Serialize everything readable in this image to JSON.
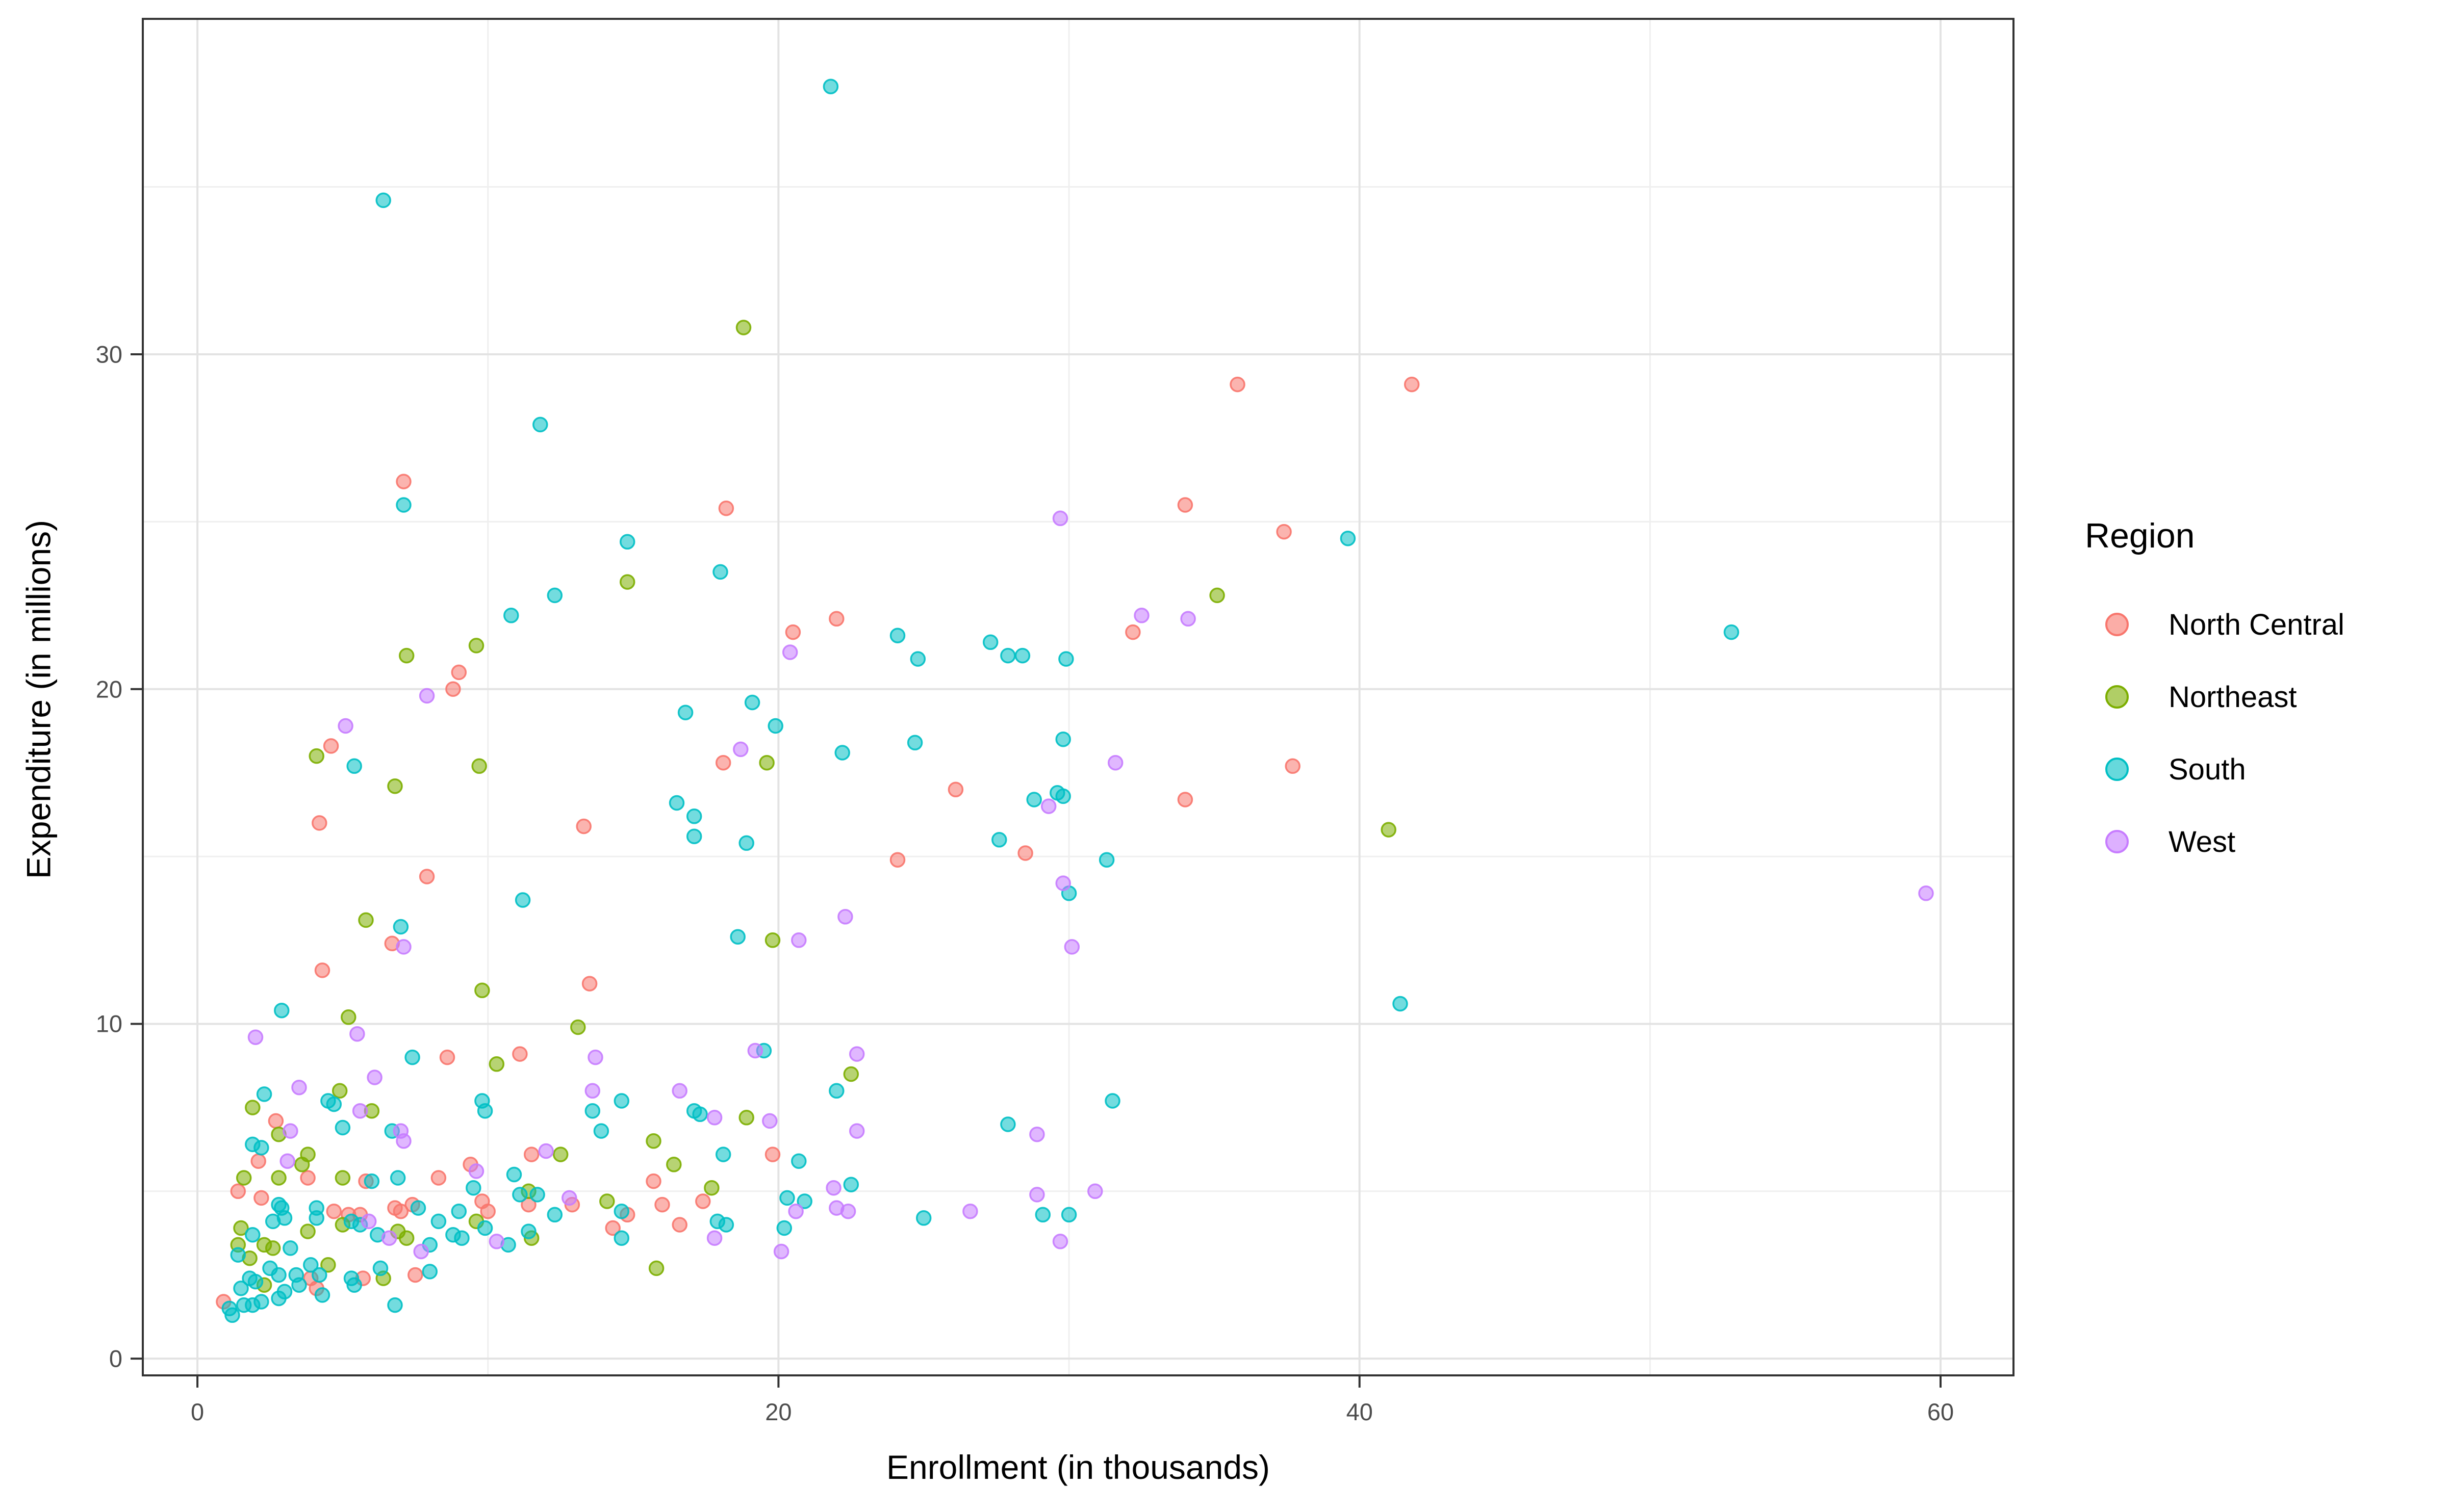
{
  "axes": {
    "x": {
      "label": "Enrollment (in thousands)",
      "ticks": [
        0,
        20,
        40,
        60
      ],
      "minor_ticks": [
        10,
        30,
        50
      ],
      "domain": [
        -1.88,
        62.51
      ]
    },
    "y": {
      "label": "Expenditure (in millions)",
      "ticks": [
        0,
        10,
        20,
        30
      ],
      "minor_ticks": [
        5,
        15,
        25,
        35
      ],
      "domain": [
        -0.5,
        40.02
      ]
    }
  },
  "legend": {
    "title": "Region",
    "items": [
      {
        "label": "North Central",
        "color": "#F8766D"
      },
      {
        "label": "Northeast",
        "color": "#7CAE00"
      },
      {
        "label": "South",
        "color": "#00BFC4"
      },
      {
        "label": "West",
        "color": "#C77CFF"
      }
    ]
  },
  "style": {
    "grid_major_color": "#e3e3e3",
    "grid_minor_color": "#efefef",
    "panel_border_color": "#333333",
    "tick_mark_color": "#333333",
    "point_fill_opacity": 0.55,
    "point_stroke_opacity": 0.9
  },
  "chart_data": {
    "type": "scatter",
    "title": "",
    "xlabel": "Enrollment (in thousands)",
    "ylabel": "Expenditure (in millions)",
    "xlim": [
      -1.88,
      62.51
    ],
    "ylim": [
      -0.5,
      40.02
    ],
    "grid": true,
    "legend_position": "right",
    "series": [
      {
        "name": "North Central",
        "color": "#F8766D",
        "points": [
          [
            3.8,
            5.4
          ],
          [
            5.8,
            5.3
          ],
          [
            8.3,
            5.4
          ],
          [
            1.4,
            5.0
          ],
          [
            2.2,
            4.8
          ],
          [
            4.7,
            4.4
          ],
          [
            5.2,
            4.3
          ],
          [
            5.6,
            4.3
          ],
          [
            6.8,
            4.5
          ],
          [
            7.0,
            4.4
          ],
          [
            7.4,
            4.6
          ],
          [
            9.8,
            4.7
          ],
          [
            10.0,
            4.4
          ],
          [
            11.4,
            4.6
          ],
          [
            3.9,
            2.4
          ],
          [
            4.1,
            2.1
          ],
          [
            5.7,
            2.4
          ],
          [
            7.5,
            2.5
          ],
          [
            0.9,
            1.7
          ],
          [
            12.9,
            4.6
          ],
          [
            14.8,
            4.3
          ],
          [
            14.3,
            3.9
          ],
          [
            15.7,
            5.3
          ],
          [
            16.0,
            4.6
          ],
          [
            16.6,
            4.0
          ],
          [
            17.4,
            4.7
          ],
          [
            4.3,
            11.6
          ],
          [
            8.6,
            9.0
          ],
          [
            11.1,
            9.1
          ],
          [
            2.7,
            7.1
          ],
          [
            2.1,
            5.9
          ],
          [
            9.4,
            5.8
          ],
          [
            11.5,
            6.1
          ],
          [
            13.5,
            11.2
          ],
          [
            19.8,
            6.1
          ],
          [
            22.0,
            22.1
          ],
          [
            20.5,
            21.7
          ],
          [
            18.1,
            17.8
          ],
          [
            26.1,
            17.0
          ],
          [
            28.5,
            15.1
          ],
          [
            24.1,
            14.9
          ],
          [
            9.0,
            20.5
          ],
          [
            8.8,
            20.0
          ],
          [
            4.6,
            18.3
          ],
          [
            4.2,
            16.0
          ],
          [
            13.3,
            15.9
          ],
          [
            7.9,
            14.4
          ],
          [
            6.7,
            12.4
          ],
          [
            32.2,
            21.7
          ],
          [
            37.7,
            17.7
          ],
          [
            34.0,
            16.7
          ],
          [
            7.1,
            26.2
          ],
          [
            18.2,
            25.4
          ],
          [
            35.8,
            29.1
          ],
          [
            41.8,
            29.1
          ],
          [
            34.0,
            25.5
          ],
          [
            37.4,
            24.7
          ]
        ]
      },
      {
        "name": "Northeast",
        "color": "#7CAE00",
        "points": [
          [
            1.6,
            5.4
          ],
          [
            2.8,
            5.4
          ],
          [
            5.0,
            5.4
          ],
          [
            1.5,
            3.9
          ],
          [
            1.4,
            3.4
          ],
          [
            2.3,
            3.4
          ],
          [
            1.8,
            3.0
          ],
          [
            2.6,
            3.3
          ],
          [
            3.8,
            3.8
          ],
          [
            5.0,
            4.0
          ],
          [
            6.9,
            3.8
          ],
          [
            7.2,
            3.6
          ],
          [
            9.6,
            4.1
          ],
          [
            11.5,
            3.6
          ],
          [
            2.3,
            2.2
          ],
          [
            4.5,
            2.8
          ],
          [
            6.4,
            2.4
          ],
          [
            11.4,
            5.0
          ],
          [
            14.1,
            4.7
          ],
          [
            15.8,
            2.7
          ],
          [
            17.7,
            5.1
          ],
          [
            9.8,
            11.0
          ],
          [
            5.2,
            10.2
          ],
          [
            10.3,
            8.8
          ],
          [
            1.9,
            7.5
          ],
          [
            4.9,
            8.0
          ],
          [
            6.0,
            7.4
          ],
          [
            2.8,
            6.7
          ],
          [
            3.8,
            6.1
          ],
          [
            3.6,
            5.8
          ],
          [
            13.1,
            9.9
          ],
          [
            18.9,
            7.2
          ],
          [
            22.5,
            8.5
          ],
          [
            15.7,
            6.5
          ],
          [
            16.4,
            5.8
          ],
          [
            12.5,
            6.1
          ],
          [
            7.2,
            21.0
          ],
          [
            9.6,
            21.3
          ],
          [
            4.1,
            18.0
          ],
          [
            6.8,
            17.1
          ],
          [
            9.7,
            17.7
          ],
          [
            5.8,
            13.1
          ],
          [
            19.6,
            17.8
          ],
          [
            19.8,
            12.5
          ],
          [
            41.0,
            15.8
          ],
          [
            18.8,
            30.8
          ],
          [
            14.8,
            23.2
          ],
          [
            35.1,
            22.8
          ]
        ]
      },
      {
        "name": "South",
        "color": "#00BFC4",
        "points": [
          [
            6.0,
            5.3
          ],
          [
            6.9,
            5.4
          ],
          [
            9.5,
            5.1
          ],
          [
            10.9,
            5.5
          ],
          [
            2.8,
            4.6
          ],
          [
            2.9,
            4.5
          ],
          [
            3.0,
            4.2
          ],
          [
            2.6,
            4.1
          ],
          [
            4.1,
            4.5
          ],
          [
            7.6,
            4.5
          ],
          [
            8.3,
            4.1
          ],
          [
            9.0,
            4.4
          ],
          [
            11.1,
            4.9
          ],
          [
            11.7,
            4.9
          ],
          [
            1.9,
            3.7
          ],
          [
            1.4,
            3.1
          ],
          [
            3.2,
            3.3
          ],
          [
            4.1,
            4.2
          ],
          [
            5.3,
            4.1
          ],
          [
            5.6,
            4.0
          ],
          [
            6.2,
            3.7
          ],
          [
            8.0,
            3.4
          ],
          [
            8.8,
            3.7
          ],
          [
            9.1,
            3.6
          ],
          [
            9.9,
            3.9
          ],
          [
            10.7,
            3.4
          ],
          [
            11.4,
            3.8
          ],
          [
            1.8,
            2.4
          ],
          [
            2.0,
            2.3
          ],
          [
            2.5,
            2.7
          ],
          [
            2.8,
            2.5
          ],
          [
            1.5,
            2.1
          ],
          [
            3.0,
            2.0
          ],
          [
            3.4,
            2.5
          ],
          [
            3.5,
            2.2
          ],
          [
            3.9,
            2.8
          ],
          [
            4.2,
            2.5
          ],
          [
            4.3,
            1.9
          ],
          [
            5.3,
            2.4
          ],
          [
            5.4,
            2.2
          ],
          [
            6.3,
            2.7
          ],
          [
            8.0,
            2.6
          ],
          [
            6.8,
            1.6
          ],
          [
            1.1,
            1.5
          ],
          [
            1.6,
            1.6
          ],
          [
            1.9,
            1.6
          ],
          [
            2.2,
            1.7
          ],
          [
            2.8,
            1.8
          ],
          [
            1.2,
            1.3
          ],
          [
            12.3,
            4.3
          ],
          [
            14.6,
            4.4
          ],
          [
            14.6,
            3.6
          ],
          [
            17.9,
            4.1
          ],
          [
            18.2,
            4.0
          ],
          [
            20.3,
            4.8
          ],
          [
            20.9,
            4.7
          ],
          [
            20.2,
            3.9
          ],
          [
            22.5,
            5.2
          ],
          [
            25.0,
            4.2
          ],
          [
            29.1,
            4.3
          ],
          [
            30.0,
            4.3
          ],
          [
            2.9,
            10.4
          ],
          [
            7.4,
            9.0
          ],
          [
            2.3,
            7.9
          ],
          [
            4.5,
            7.7
          ],
          [
            4.7,
            7.6
          ],
          [
            5.0,
            6.9
          ],
          [
            6.7,
            6.8
          ],
          [
            1.9,
            6.4
          ],
          [
            2.2,
            6.3
          ],
          [
            9.8,
            7.7
          ],
          [
            9.9,
            7.4
          ],
          [
            13.6,
            7.4
          ],
          [
            14.6,
            7.7
          ],
          [
            13.9,
            6.8
          ],
          [
            17.1,
            7.4
          ],
          [
            17.3,
            7.3
          ],
          [
            19.5,
            9.2
          ],
          [
            22.0,
            8.0
          ],
          [
            18.1,
            6.1
          ],
          [
            20.7,
            5.9
          ],
          [
            41.4,
            10.6
          ],
          [
            31.5,
            7.7
          ],
          [
            27.9,
            7.0
          ],
          [
            24.1,
            21.6
          ],
          [
            24.8,
            20.9
          ],
          [
            27.3,
            21.4
          ],
          [
            27.9,
            21.0
          ],
          [
            28.4,
            21.0
          ],
          [
            29.9,
            20.9
          ],
          [
            16.8,
            19.3
          ],
          [
            19.1,
            19.6
          ],
          [
            19.9,
            18.9
          ],
          [
            5.4,
            17.7
          ],
          [
            22.2,
            18.1
          ],
          [
            24.7,
            18.4
          ],
          [
            16.5,
            16.6
          ],
          [
            17.1,
            16.2
          ],
          [
            17.1,
            15.6
          ],
          [
            18.9,
            15.4
          ],
          [
            28.8,
            16.7
          ],
          [
            27.6,
            15.5
          ],
          [
            11.2,
            13.7
          ],
          [
            7.0,
            12.9
          ],
          [
            18.6,
            12.6
          ],
          [
            29.8,
            18.5
          ],
          [
            29.6,
            16.9
          ],
          [
            29.8,
            16.8
          ],
          [
            31.3,
            14.9
          ],
          [
            30.0,
            13.9
          ],
          [
            6.4,
            34.6
          ],
          [
            11.8,
            27.9
          ],
          [
            7.1,
            25.5
          ],
          [
            14.8,
            24.4
          ],
          [
            18.0,
            23.5
          ],
          [
            12.3,
            22.8
          ],
          [
            10.8,
            22.2
          ],
          [
            21.8,
            38.0
          ],
          [
            39.6,
            24.5
          ],
          [
            52.8,
            21.7
          ]
        ]
      },
      {
        "name": "West",
        "color": "#C77CFF",
        "points": [
          [
            9.6,
            5.6
          ],
          [
            5.9,
            4.1
          ],
          [
            6.6,
            3.6
          ],
          [
            7.7,
            3.2
          ],
          [
            10.3,
            3.5
          ],
          [
            12.8,
            4.8
          ],
          [
            17.8,
            3.6
          ],
          [
            20.6,
            4.4
          ],
          [
            20.1,
            3.2
          ],
          [
            21.9,
            5.1
          ],
          [
            22.0,
            4.5
          ],
          [
            22.4,
            4.4
          ],
          [
            26.6,
            4.4
          ],
          [
            28.9,
            4.9
          ],
          [
            30.9,
            5.0
          ],
          [
            29.7,
            3.5
          ],
          [
            5.5,
            9.7
          ],
          [
            2.0,
            9.6
          ],
          [
            6.1,
            8.4
          ],
          [
            3.5,
            8.1
          ],
          [
            5.6,
            7.4
          ],
          [
            7.0,
            6.8
          ],
          [
            7.1,
            6.5
          ],
          [
            3.2,
            6.8
          ],
          [
            3.1,
            5.9
          ],
          [
            12.0,
            6.2
          ],
          [
            13.7,
            9.0
          ],
          [
            13.6,
            8.0
          ],
          [
            16.6,
            8.0
          ],
          [
            17.8,
            7.2
          ],
          [
            19.7,
            7.1
          ],
          [
            19.2,
            9.2
          ],
          [
            22.7,
            9.1
          ],
          [
            22.7,
            6.8
          ],
          [
            30.1,
            12.3
          ],
          [
            28.9,
            6.7
          ],
          [
            7.9,
            19.8
          ],
          [
            5.1,
            18.9
          ],
          [
            18.7,
            18.2
          ],
          [
            29.3,
            16.5
          ],
          [
            29.8,
            14.2
          ],
          [
            22.3,
            13.2
          ],
          [
            20.7,
            12.5
          ],
          [
            7.1,
            12.3
          ],
          [
            20.4,
            21.1
          ],
          [
            32.5,
            22.2
          ],
          [
            34.1,
            22.1
          ],
          [
            31.6,
            17.8
          ],
          [
            59.5,
            13.9
          ],
          [
            29.7,
            25.1
          ]
        ]
      }
    ]
  }
}
